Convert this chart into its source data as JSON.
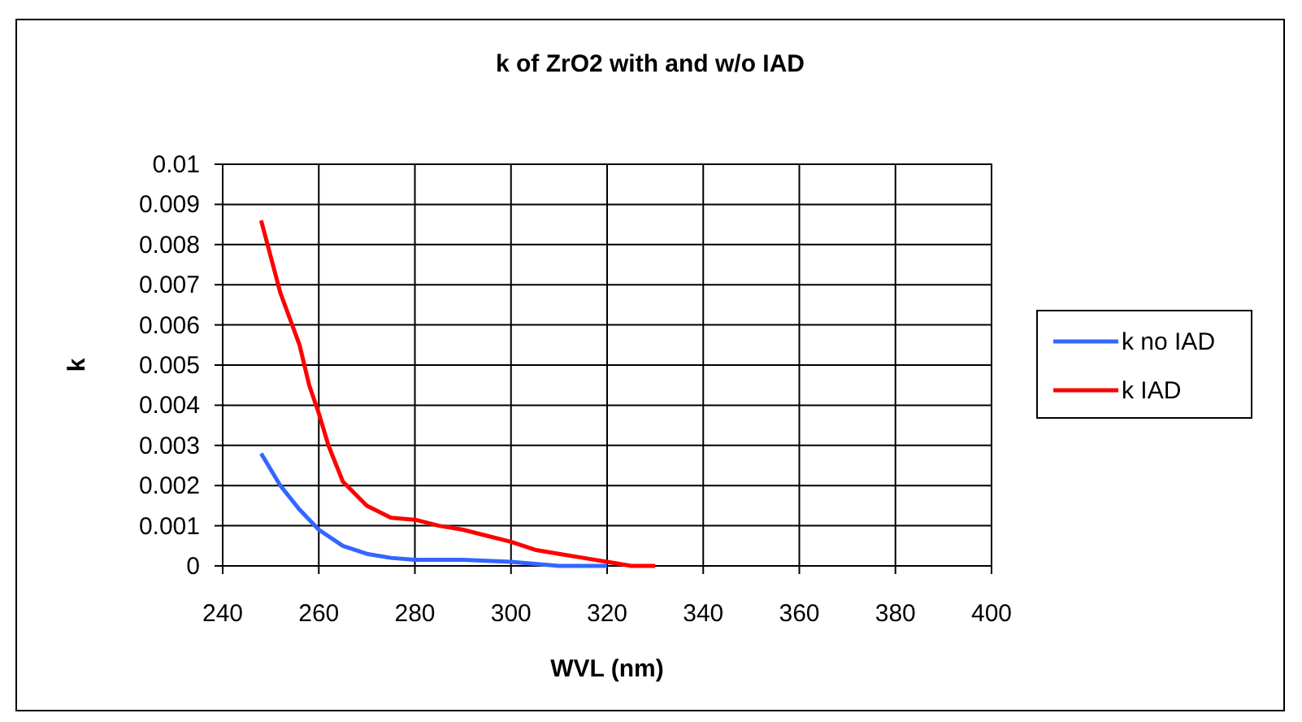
{
  "chart_data": {
    "type": "line",
    "title": "k of ZrO2 with and w/o IAD",
    "xlabel": "WVL (nm)",
    "ylabel": "k",
    "xlim": [
      240,
      400
    ],
    "xticks": [
      240,
      260,
      280,
      300,
      320,
      340,
      360,
      380,
      400
    ],
    "ylim": [
      0,
      0.01
    ],
    "yticks": [
      0,
      0.001,
      0.002,
      0.003,
      0.004,
      0.005,
      0.006,
      0.007,
      0.008,
      0.009,
      0.01
    ],
    "grid": true,
    "legend": "right",
    "marker": "none",
    "line_style": "solid",
    "series": [
      {
        "name": "k no IAD",
        "color": "#3366ff",
        "x": [
          248,
          252,
          256,
          260,
          265,
          270,
          275,
          280,
          290,
          300,
          310,
          320
        ],
        "values": [
          0.0028,
          0.002,
          0.0014,
          0.0009,
          0.0005,
          0.0003,
          0.0002,
          0.00015,
          0.00015,
          0.0001,
          0,
          0
        ]
      },
      {
        "name": "k IAD",
        "color": "#ff0000",
        "x": [
          248,
          252,
          256,
          258,
          260,
          262,
          265,
          270,
          275,
          280,
          285,
          290,
          295,
          300,
          305,
          310,
          315,
          320,
          325,
          330
        ],
        "values": [
          0.0086,
          0.0068,
          0.0055,
          0.0045,
          0.0038,
          0.003,
          0.0021,
          0.0015,
          0.0012,
          0.00115,
          0.001,
          0.0009,
          0.00075,
          0.0006,
          0.0004,
          0.0003,
          0.0002,
          0.0001,
          0,
          0
        ]
      }
    ]
  }
}
